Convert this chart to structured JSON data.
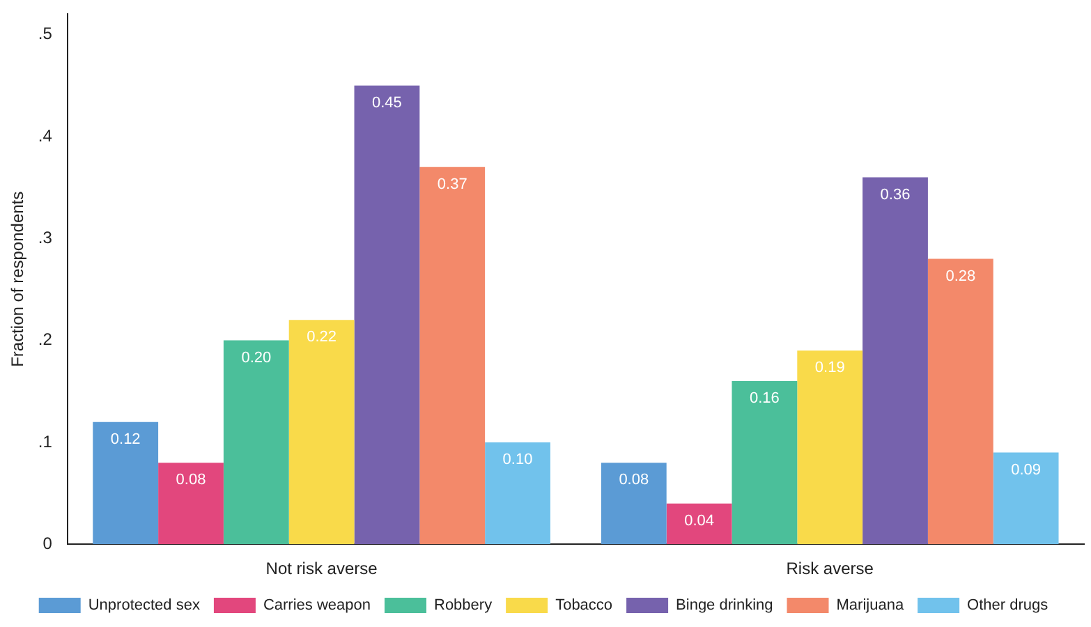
{
  "chart_data": {
    "type": "bar",
    "ylabel": "Fraction of respondents",
    "categories": [
      "Not risk averse",
      "Risk averse"
    ],
    "series": [
      {
        "name": "Unprotected sex",
        "color": "#5b9bd5",
        "values": [
          0.12,
          0.08
        ],
        "value_labels": [
          "0.12",
          "0.08"
        ]
      },
      {
        "name": "Carries weapon",
        "color": "#e2477d",
        "values": [
          0.08,
          0.04
        ],
        "value_labels": [
          "0.08",
          "0.04"
        ]
      },
      {
        "name": "Robbery",
        "color": "#4bbf9a",
        "values": [
          0.2,
          0.16
        ],
        "value_labels": [
          "0.20",
          "0.16"
        ]
      },
      {
        "name": "Tobacco",
        "color": "#f9da4a",
        "values": [
          0.22,
          0.19
        ],
        "value_labels": [
          "0.22",
          "0.19"
        ]
      },
      {
        "name": "Binge drinking",
        "color": "#7662ad",
        "values": [
          0.45,
          0.36
        ],
        "value_labels": [
          "0.45",
          "0.36"
        ]
      },
      {
        "name": "Marijuana",
        "color": "#f3896a",
        "values": [
          0.37,
          0.28
        ],
        "value_labels": [
          "0.37",
          "0.28"
        ]
      },
      {
        "name": "Other drugs",
        "color": "#71c2ec",
        "values": [
          0.1,
          0.09
        ],
        "value_labels": [
          "0.10",
          "0.09"
        ]
      }
    ],
    "ylim": [
      0,
      0.52
    ],
    "yticks": [
      0,
      {
        "value": 0.1,
        "label": ".1"
      },
      {
        "value": 0.2,
        "label": ".2"
      },
      {
        "value": 0.3,
        "label": ".3"
      },
      {
        "value": 0.4,
        "label": ".4"
      },
      {
        "value": 0.5,
        "label": ".5"
      }
    ],
    "grid": false,
    "legend": "bottom"
  }
}
